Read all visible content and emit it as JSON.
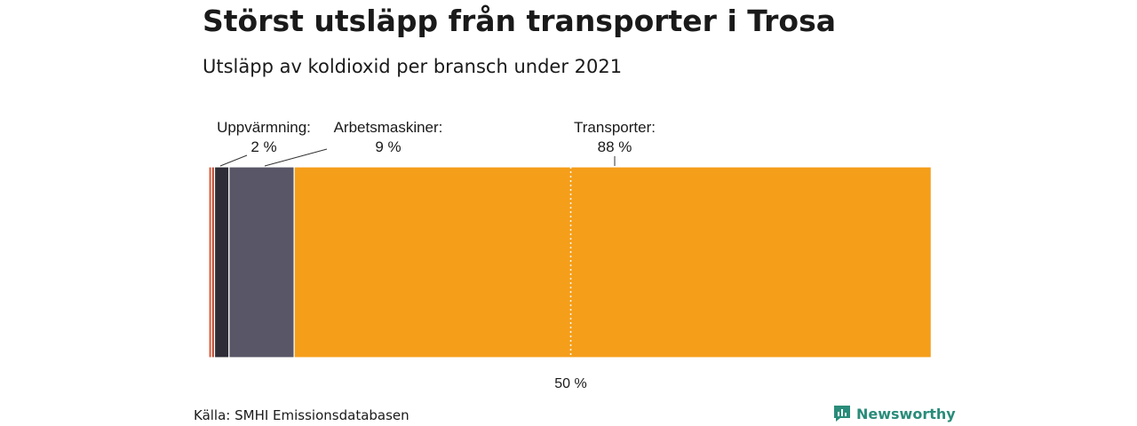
{
  "header": {
    "title": "Störst utsläpp från transporter i Trosa",
    "subtitle": "Utsläpp av koldioxid per bransch under 2021"
  },
  "footer": {
    "source": "Källa: SMHI Emissionsdatabasen",
    "brand": "Newsworthy",
    "brand_icon": "newsworthy-logo-icon",
    "brand_color": "#2a8c7a"
  },
  "chart_data": {
    "type": "bar",
    "orientation": "horizontal-stacked",
    "xlim": [
      0,
      100
    ],
    "categories": [
      "",
      "",
      "Uppvärmning:",
      "Arbetsmaskiner:",
      "Transporter:"
    ],
    "values": [
      0.4,
      0.4,
      2,
      9,
      88
    ],
    "value_labels": [
      "",
      "",
      "2 %",
      "9 %",
      "88 %"
    ],
    "colors": [
      "#e0522e",
      "#b5452f",
      "#2e2c36",
      "#595667",
      "#f59e1a"
    ],
    "reference_line": {
      "value": 50,
      "label": "50 %",
      "style": "dotted"
    }
  }
}
